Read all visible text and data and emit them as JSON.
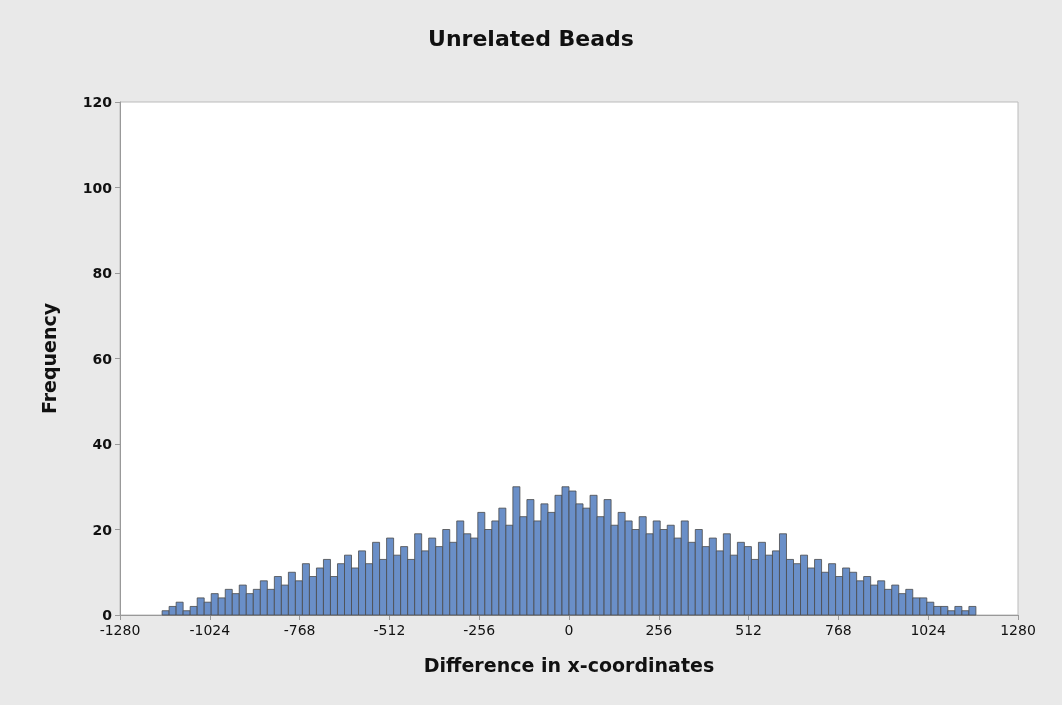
{
  "chart_data": {
    "type": "histogram",
    "title": "Unrelated Beads",
    "xlabel": "Difference in x-coordinates",
    "ylabel": "Frequency",
    "bins": [
      -1160,
      -1140,
      -1120,
      -1100,
      -1080,
      -1060,
      -1040,
      -1020,
      -1000,
      -980,
      -960,
      -940,
      -920,
      -900,
      -880,
      -860,
      -840,
      -820,
      -800,
      -780,
      -760,
      -740,
      -720,
      -700,
      -680,
      -660,
      -640,
      -620,
      -600,
      -580,
      -560,
      -540,
      -520,
      -500,
      -480,
      -460,
      -440,
      -420,
      -400,
      -380,
      -360,
      -340,
      -320,
      -300,
      -280,
      -260,
      -240,
      -220,
      -200,
      -180,
      -160,
      -140,
      -120,
      -100,
      -80,
      -60,
      -40,
      -20,
      0,
      20,
      40,
      60,
      80,
      100,
      120,
      140,
      160,
      180,
      200,
      220,
      240,
      260,
      280,
      300,
      320,
      340,
      360,
      380,
      400,
      420,
      440,
      460,
      480,
      500,
      520,
      540,
      560,
      580,
      600,
      620,
      640,
      660,
      680,
      700,
      720,
      740,
      760,
      780,
      800,
      820,
      840,
      860,
      880,
      900,
      920,
      940,
      960,
      980,
      1000,
      1020,
      1040,
      1060,
      1080,
      1100,
      1120,
      1140,
      1160
    ],
    "values": [
      1,
      2,
      3,
      1,
      2,
      4,
      3,
      5,
      4,
      6,
      5,
      7,
      5,
      6,
      8,
      6,
      9,
      7,
      10,
      8,
      12,
      9,
      11,
      13,
      9,
      12,
      14,
      11,
      15,
      12,
      17,
      13,
      18,
      14,
      16,
      13,
      19,
      15,
      18,
      16,
      20,
      17,
      22,
      19,
      18,
      24,
      20,
      22,
      25,
      21,
      30,
      23,
      27,
      22,
      26,
      24,
      28,
      30,
      29,
      26,
      25,
      28,
      23,
      27,
      21,
      24,
      22,
      20,
      23,
      19,
      22,
      20,
      21,
      18,
      22,
      17,
      20,
      16,
      18,
      15,
      19,
      14,
      17,
      16,
      13,
      17,
      14,
      15,
      19,
      13,
      12,
      14,
      11,
      13,
      10,
      12,
      9,
      11,
      10,
      8,
      9,
      7,
      8,
      6,
      7,
      5,
      6,
      4,
      4,
      3,
      2,
      2,
      1,
      2,
      1,
      2
    ],
    "color": "#6a8fc8",
    "xlim": [
      -1280,
      1280
    ],
    "xticks": [
      -1280,
      -1024,
      -768,
      -512,
      -256,
      0,
      256,
      512,
      768,
      1024,
      1280
    ],
    "ylim": [
      0,
      120
    ],
    "yticks": [
      0,
      20,
      40,
      60,
      80,
      100,
      120
    ],
    "grid": false
  }
}
